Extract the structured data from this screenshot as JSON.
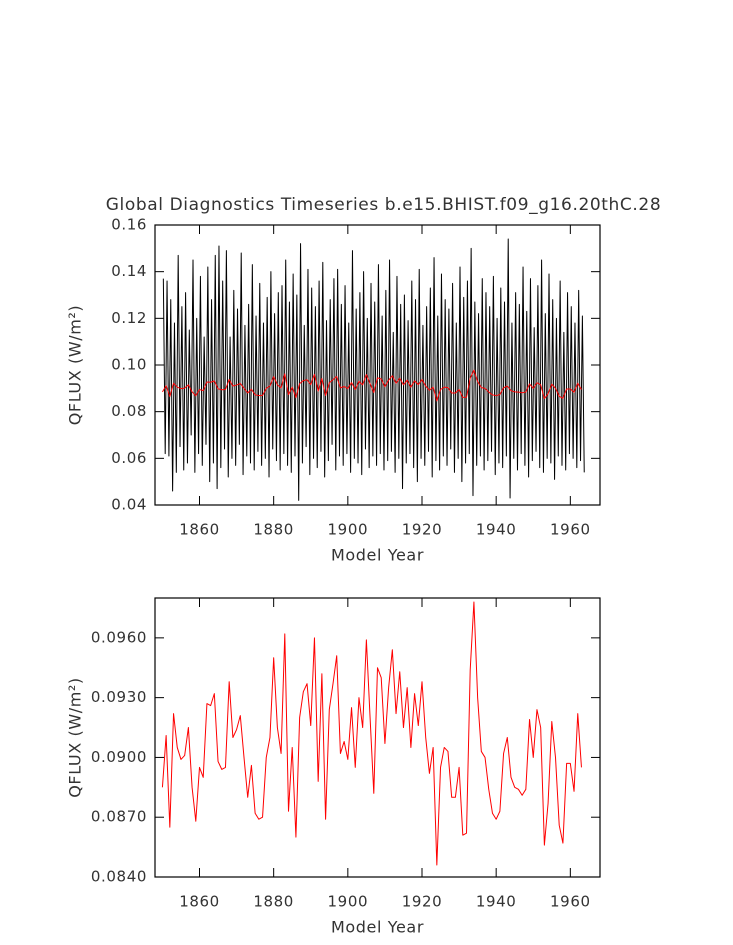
{
  "chart_data": [
    {
      "type": "line",
      "title": "Global Diagnostics Timeseries b.e15.BHIST.f09_g16.20thC.28",
      "xlabel": "Model Year",
      "ylabel": "QFLUX (W/m²)",
      "xlim": [
        1848,
        1968
      ],
      "xticks": [
        1860,
        1880,
        1900,
        1920,
        1940,
        1960
      ],
      "ylim": [
        0.04,
        0.16
      ],
      "yticks": [
        0.04,
        0.06,
        0.08,
        {
          "value": 0.1,
          "label": "0.10"
        },
        0.12,
        0.14,
        0.16
      ],
      "series": [
        {
          "color": "#000000",
          "x": [
            1850.25,
            1850.75,
            1851.25,
            1851.75,
            1852.25,
            1852.75,
            1853.25,
            1853.75,
            1854.25,
            1854.75,
            1855.25,
            1855.75,
            1856.25,
            1856.75,
            1857.25,
            1857.75,
            1858.25,
            1858.75,
            1859.25,
            1859.75,
            1860.25,
            1860.75,
            1861.25,
            1861.75,
            1862.25,
            1862.75,
            1863.25,
            1863.75,
            1864.25,
            1864.75,
            1865.25,
            1865.75,
            1866.25,
            1866.75,
            1867.25,
            1867.75,
            1868.25,
            1868.75,
            1869.25,
            1869.75,
            1870.25,
            1870.75,
            1871.25,
            1871.75,
            1872.25,
            1872.75,
            1873.25,
            1873.75,
            1874.25,
            1874.75,
            1875.25,
            1875.75,
            1876.25,
            1876.75,
            1877.25,
            1877.75,
            1878.25,
            1878.75,
            1879.25,
            1879.75,
            1880.25,
            1880.75,
            1881.25,
            1881.75,
            1882.25,
            1882.75,
            1883.25,
            1883.75,
            1884.25,
            1884.75,
            1885.25,
            1885.75,
            1886.25,
            1886.75,
            1887.25,
            1887.75,
            1888.25,
            1888.75,
            1889.25,
            1889.75,
            1890.25,
            1890.75,
            1891.25,
            1891.75,
            1892.25,
            1892.75,
            1893.25,
            1893.75,
            1894.25,
            1894.75,
            1895.25,
            1895.75,
            1896.25,
            1896.75,
            1897.25,
            1897.75,
            1898.25,
            1898.75,
            1899.25,
            1899.75,
            1900.25,
            1900.75,
            1901.25,
            1901.75,
            1902.25,
            1902.75,
            1903.25,
            1903.75,
            1904.25,
            1904.75,
            1905.25,
            1905.75,
            1906.25,
            1906.75,
            1907.25,
            1907.75,
            1908.25,
            1908.75,
            1909.25,
            1909.75,
            1910.25,
            1910.75,
            1911.25,
            1911.75,
            1912.25,
            1912.75,
            1913.25,
            1913.75,
            1914.25,
            1914.75,
            1915.25,
            1915.75,
            1916.25,
            1916.75,
            1917.25,
            1917.75,
            1918.25,
            1918.75,
            1919.25,
            1919.75,
            1920.25,
            1920.75,
            1921.25,
            1921.75,
            1922.25,
            1922.75,
            1923.25,
            1923.75,
            1924.25,
            1924.75,
            1925.25,
            1925.75,
            1926.25,
            1926.75,
            1927.25,
            1927.75,
            1928.25,
            1928.75,
            1929.25,
            1929.75,
            1930.25,
            1930.75,
            1931.25,
            1931.75,
            1932.25,
            1932.75,
            1933.25,
            1933.75,
            1934.25,
            1934.75,
            1935.25,
            1935.75,
            1936.25,
            1936.75,
            1937.25,
            1937.75,
            1938.25,
            1938.75,
            1939.25,
            1939.75,
            1940.25,
            1940.75,
            1941.25,
            1941.75,
            1942.25,
            1942.75,
            1943.25,
            1943.75,
            1944.25,
            1944.75,
            1945.25,
            1945.75,
            1946.25,
            1946.75,
            1947.25,
            1947.75,
            1948.25,
            1948.75,
            1949.25,
            1949.75,
            1950.25,
            1950.75,
            1951.25,
            1951.75,
            1952.25,
            1952.75,
            1953.25,
            1953.75,
            1954.25,
            1954.75,
            1955.25,
            1955.75,
            1956.25,
            1956.75,
            1957.25,
            1957.75,
            1958.25,
            1958.75,
            1959.25,
            1959.75,
            1960.25,
            1960.75,
            1961.25,
            1961.75,
            1962.25,
            1962.75,
            1963.25,
            1963.75
          ],
          "values": [
            0.137,
            0.062,
            0.136,
            0.061,
            0.128,
            0.046,
            0.118,
            0.054,
            0.147,
            0.065,
            0.125,
            0.055,
            0.131,
            0.058,
            0.115,
            0.07,
            0.145,
            0.054,
            0.12,
            0.062,
            0.138,
            0.057,
            0.112,
            0.066,
            0.142,
            0.05,
            0.128,
            0.058,
            0.147,
            0.047,
            0.151,
            0.056,
            0.136,
            0.064,
            0.149,
            0.052,
            0.112,
            0.06,
            0.132,
            0.057,
            0.124,
            0.066,
            0.148,
            0.053,
            0.117,
            0.061,
            0.126,
            0.058,
            0.143,
            0.055,
            0.121,
            0.063,
            0.135,
            0.057,
            0.118,
            0.06,
            0.129,
            0.052,
            0.14,
            0.064,
            0.122,
            0.059,
            0.131,
            0.055,
            0.134,
            0.062,
            0.145,
            0.057,
            0.127,
            0.054,
            0.139,
            0.061,
            0.13,
            0.042,
            0.152,
            0.058,
            0.117,
            0.065,
            0.141,
            0.053,
            0.133,
            0.06,
            0.125,
            0.056,
            0.136,
            0.063,
            0.144,
            0.052,
            0.119,
            0.059,
            0.128,
            0.066,
            0.137,
            0.055,
            0.141,
            0.061,
            0.126,
            0.057,
            0.134,
            0.062,
            0.118,
            0.054,
            0.149,
            0.06,
            0.124,
            0.058,
            0.131,
            0.053,
            0.14,
            0.064,
            0.12,
            0.056,
            0.135,
            0.061,
            0.127,
            0.057,
            0.143,
            0.062,
            0.121,
            0.055,
            0.132,
            0.059,
            0.145,
            0.063,
            0.114,
            0.054,
            0.138,
            0.06,
            0.126,
            0.047,
            0.13,
            0.058,
            0.119,
            0.062,
            0.136,
            0.056,
            0.128,
            0.05,
            0.141,
            0.06,
            0.117,
            0.057,
            0.125,
            0.063,
            0.133,
            0.052,
            0.146,
            0.059,
            0.121,
            0.055,
            0.139,
            0.061,
            0.128,
            0.057,
            0.124,
            0.064,
            0.135,
            0.054,
            0.118,
            0.06,
            0.142,
            0.05,
            0.129,
            0.058,
            0.136,
            0.062,
            0.15,
            0.044,
            0.127,
            0.057,
            0.122,
            0.061,
            0.137,
            0.055,
            0.131,
            0.059,
            0.125,
            0.063,
            0.138,
            0.053,
            0.12,
            0.058,
            0.133,
            0.056,
            0.127,
            0.061,
            0.154,
            0.043,
            0.118,
            0.06,
            0.131,
            0.055,
            0.126,
            0.062,
            0.142,
            0.057,
            0.123,
            0.052,
            0.137,
            0.059,
            0.116,
            0.063,
            0.134,
            0.056,
            0.145,
            0.054,
            0.122,
            0.06,
            0.139,
            0.058,
            0.128,
            0.051,
            0.12,
            0.061,
            0.136,
            0.057,
            0.114,
            0.055,
            0.131,
            0.062,
            0.125,
            0.06,
            0.118,
            0.056,
            0.132,
            0.059,
            0.121,
            0.054
          ]
        },
        {
          "color": "#ff0000",
          "x": [
            1850,
            1851,
            1852,
            1853,
            1854,
            1855,
            1856,
            1857,
            1858,
            1859,
            1860,
            1861,
            1862,
            1863,
            1864,
            1865,
            1866,
            1867,
            1868,
            1869,
            1870,
            1871,
            1872,
            1873,
            1874,
            1875,
            1876,
            1877,
            1878,
            1879,
            1880,
            1881,
            1882,
            1883,
            1884,
            1885,
            1886,
            1887,
            1888,
            1889,
            1890,
            1891,
            1892,
            1893,
            1894,
            1895,
            1896,
            1897,
            1898,
            1899,
            1900,
            1901,
            1902,
            1903,
            1904,
            1905,
            1906,
            1907,
            1908,
            1909,
            1910,
            1911,
            1912,
            1913,
            1914,
            1915,
            1916,
            1917,
            1918,
            1919,
            1920,
            1921,
            1922,
            1923,
            1924,
            1925,
            1926,
            1927,
            1928,
            1929,
            1930,
            1931,
            1932,
            1933,
            1934,
            1935,
            1936,
            1937,
            1938,
            1939,
            1940,
            1941,
            1942,
            1943,
            1944,
            1945,
            1946,
            1947,
            1948,
            1949,
            1950,
            1951,
            1952,
            1953,
            1954,
            1955,
            1956,
            1957,
            1958,
            1959,
            1960,
            1961,
            1962,
            1963
          ],
          "values": [
            0.0885,
            0.0911,
            0.0865,
            0.0922,
            0.0905,
            0.0899,
            0.0901,
            0.0915,
            0.0885,
            0.0868,
            0.0895,
            0.089,
            0.0927,
            0.0926,
            0.0932,
            0.0898,
            0.0894,
            0.0895,
            0.0938,
            0.091,
            0.0914,
            0.0921,
            0.09,
            0.088,
            0.0896,
            0.0872,
            0.0869,
            0.087,
            0.09,
            0.091,
            0.095,
            0.0915,
            0.0902,
            0.0962,
            0.0873,
            0.0905,
            0.086,
            0.092,
            0.0933,
            0.0937,
            0.0916,
            0.096,
            0.0888,
            0.0942,
            0.0869,
            0.0924,
            0.0937,
            0.0951,
            0.0902,
            0.0908,
            0.0899,
            0.0925,
            0.0895,
            0.093,
            0.0915,
            0.0959,
            0.092,
            0.0882,
            0.0945,
            0.094,
            0.0907,
            0.0935,
            0.0954,
            0.0922,
            0.0943,
            0.0915,
            0.0935,
            0.0905,
            0.0932,
            0.0916,
            0.0938,
            0.091,
            0.0892,
            0.0905,
            0.0846,
            0.0895,
            0.0905,
            0.0903,
            0.088,
            0.088,
            0.0895,
            0.0861,
            0.0862,
            0.0944,
            0.0978,
            0.093,
            0.0903,
            0.09,
            0.0884,
            0.0872,
            0.0869,
            0.0873,
            0.0902,
            0.091,
            0.089,
            0.0885,
            0.0884,
            0.0881,
            0.0884,
            0.0919,
            0.09,
            0.0924,
            0.0915,
            0.0856,
            0.0877,
            0.0918,
            0.09,
            0.0866,
            0.0857,
            0.0897,
            0.0897,
            0.0883,
            0.0922,
            0.0895
          ]
        }
      ]
    },
    {
      "type": "line",
      "xlabel": "Model Year",
      "ylabel": "QFLUX (W/m²)",
      "xlim": [
        1848,
        1968
      ],
      "xticks": [
        1860,
        1880,
        1900,
        1920,
        1940,
        1960
      ],
      "ylim": [
        0.084,
        0.098
      ],
      "yticks": [
        {
          "value": 0.084,
          "label": "0.0840"
        },
        {
          "value": 0.087,
          "label": "0.0870"
        },
        {
          "value": 0.09,
          "label": "0.0900"
        },
        {
          "value": 0.093,
          "label": "0.0930"
        },
        {
          "value": 0.096,
          "label": "0.0960"
        }
      ],
      "series": [
        {
          "color": "#ff0000",
          "x": [
            1850,
            1851,
            1852,
            1853,
            1854,
            1855,
            1856,
            1857,
            1858,
            1859,
            1860,
            1861,
            1862,
            1863,
            1864,
            1865,
            1866,
            1867,
            1868,
            1869,
            1870,
            1871,
            1872,
            1873,
            1874,
            1875,
            1876,
            1877,
            1878,
            1879,
            1880,
            1881,
            1882,
            1883,
            1884,
            1885,
            1886,
            1887,
            1888,
            1889,
            1890,
            1891,
            1892,
            1893,
            1894,
            1895,
            1896,
            1897,
            1898,
            1899,
            1900,
            1901,
            1902,
            1903,
            1904,
            1905,
            1906,
            1907,
            1908,
            1909,
            1910,
            1911,
            1912,
            1913,
            1914,
            1915,
            1916,
            1917,
            1918,
            1919,
            1920,
            1921,
            1922,
            1923,
            1924,
            1925,
            1926,
            1927,
            1928,
            1929,
            1930,
            1931,
            1932,
            1933,
            1934,
            1935,
            1936,
            1937,
            1938,
            1939,
            1940,
            1941,
            1942,
            1943,
            1944,
            1945,
            1946,
            1947,
            1948,
            1949,
            1950,
            1951,
            1952,
            1953,
            1954,
            1955,
            1956,
            1957,
            1958,
            1959,
            1960,
            1961,
            1962,
            1963
          ],
          "values": [
            0.0885,
            0.0911,
            0.0865,
            0.0922,
            0.0905,
            0.0899,
            0.0901,
            0.0915,
            0.0885,
            0.0868,
            0.0895,
            0.089,
            0.0927,
            0.0926,
            0.0932,
            0.0898,
            0.0894,
            0.0895,
            0.0938,
            0.091,
            0.0914,
            0.0921,
            0.09,
            0.088,
            0.0896,
            0.0872,
            0.0869,
            0.087,
            0.09,
            0.091,
            0.095,
            0.0915,
            0.0902,
            0.0962,
            0.0873,
            0.0905,
            0.086,
            0.092,
            0.0933,
            0.0937,
            0.0916,
            0.096,
            0.0888,
            0.0942,
            0.0869,
            0.0924,
            0.0937,
            0.0951,
            0.0902,
            0.0908,
            0.0899,
            0.0925,
            0.0895,
            0.093,
            0.0915,
            0.0959,
            0.092,
            0.0882,
            0.0945,
            0.094,
            0.0907,
            0.0935,
            0.0954,
            0.0922,
            0.0943,
            0.0915,
            0.0935,
            0.0905,
            0.0932,
            0.0916,
            0.0938,
            0.091,
            0.0892,
            0.0905,
            0.0846,
            0.0895,
            0.0905,
            0.0903,
            0.088,
            0.088,
            0.0895,
            0.0861,
            0.0862,
            0.0944,
            0.0978,
            0.093,
            0.0903,
            0.09,
            0.0884,
            0.0872,
            0.0869,
            0.0873,
            0.0902,
            0.091,
            0.089,
            0.0885,
            0.0884,
            0.0881,
            0.0884,
            0.0919,
            0.09,
            0.0924,
            0.0915,
            0.0856,
            0.0877,
            0.0918,
            0.09,
            0.0866,
            0.0857,
            0.0897,
            0.0897,
            0.0883,
            0.0922,
            0.0895
          ]
        }
      ]
    }
  ]
}
